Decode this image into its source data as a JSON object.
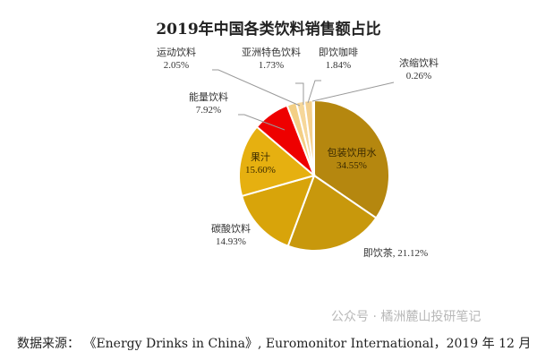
{
  "chart_data": {
    "type": "pie",
    "title": "2019年中国各类饮料销售额占比",
    "start": "12 o'clock, clockwise",
    "slices": [
      {
        "label": "包装饮用水",
        "value": 34.55,
        "display": "34.55%",
        "color": "#b5870f"
      },
      {
        "label": "即饮茶",
        "value": 21.12,
        "display": "21.12%",
        "color": "#c8980c"
      },
      {
        "label": "碳酸饮料",
        "value": 14.93,
        "display": "14.93%",
        "color": "#d8a40a"
      },
      {
        "label": "果汁",
        "value": 15.6,
        "display": "15.60%",
        "color": "#e6b010"
      },
      {
        "label": "能量饮料",
        "value": 7.92,
        "display": "7.92%",
        "color": "#ee0000"
      },
      {
        "label": "运动饮料",
        "value": 2.05,
        "display": "2.05%",
        "color": "#f3cf85"
      },
      {
        "label": "亚洲特色饮料",
        "value": 1.73,
        "display": "1.73%",
        "color": "#f6d79a"
      },
      {
        "label": "即饮咖啡",
        "value": 1.84,
        "display": "1.84%",
        "color": "#f4d08e"
      },
      {
        "label": "浓缩饮料",
        "value": 0.26,
        "display": "0.26%",
        "color": "#f8e0b0"
      }
    ]
  },
  "source": "数据来源： 《Energy Drinks in China》, Euromonitor International，2019 年 12 月",
  "watermark": "公众号 · 橘洲麓山投研笔记"
}
